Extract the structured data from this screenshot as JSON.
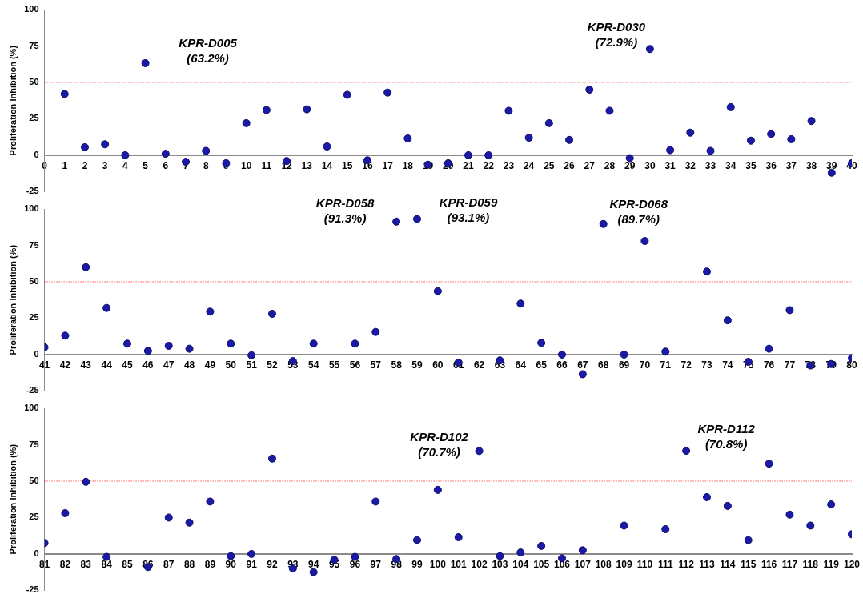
{
  "chart_data": [
    {
      "type": "scatter",
      "ylabel": "Proliferation Inhibition (%)",
      "color": "#1a1aa6",
      "grid": false,
      "x": [
        1,
        2,
        3,
        4,
        5,
        6,
        7,
        8,
        9,
        10,
        11,
        12,
        13,
        14,
        15,
        16,
        17,
        18,
        19,
        20,
        21,
        22,
        23,
        24,
        25,
        26,
        27,
        28,
        29,
        30,
        31,
        32,
        33,
        34,
        35,
        36,
        37,
        38,
        39,
        40
      ],
      "values": [
        42,
        5.5,
        7.5,
        0,
        63.2,
        1,
        -4.5,
        3,
        -5.5,
        22,
        31,
        -4,
        31.5,
        6,
        41.5,
        -3.5,
        43,
        11.5,
        -6.5,
        -5.5,
        0,
        0,
        30.5,
        12,
        22,
        10.5,
        45,
        30.5,
        -2,
        72.9,
        3.5,
        15.5,
        3,
        33,
        10,
        14.5,
        11,
        23.5,
        -12,
        -5.5
      ],
      "xlim": [
        0,
        40
      ],
      "xticks": [
        0,
        1,
        2,
        3,
        4,
        5,
        6,
        7,
        8,
        9,
        10,
        11,
        12,
        13,
        14,
        15,
        16,
        17,
        18,
        19,
        20,
        21,
        22,
        23,
        24,
        25,
        26,
        27,
        28,
        29,
        30,
        31,
        32,
        33,
        34,
        35,
        36,
        37,
        38,
        39,
        40
      ],
      "ylim": [
        -25,
        100
      ],
      "yticks": [
        -25,
        0,
        25,
        50,
        75,
        100
      ],
      "reference_line": {
        "value": 50,
        "color": "#ff0000"
      },
      "annotations": [
        {
          "x": 5,
          "text": [
            "KPR-D005",
            "(63.2%)"
          ]
        },
        {
          "x": 30,
          "text": [
            "KPR-D030",
            "(72.9%)"
          ]
        }
      ]
    },
    {
      "type": "scatter",
      "ylabel": "Proliferation Inhibition (%)",
      "color": "#1a1aa6",
      "grid": false,
      "x": [
        41,
        42,
        43,
        44,
        45,
        46,
        47,
        48,
        49,
        50,
        51,
        52,
        53,
        54,
        55,
        56,
        57,
        58,
        59,
        60,
        61,
        62,
        63,
        64,
        65,
        66,
        67,
        68,
        69,
        70,
        71,
        72,
        73,
        74,
        75,
        76,
        77,
        78,
        79,
        80
      ],
      "values": [
        5,
        13,
        60,
        32,
        7.5,
        2.5,
        6,
        4,
        29.5,
        7.5,
        -0.5,
        28,
        -4.5,
        7.5,
        null,
        7.5,
        15.5,
        91.3,
        93.1,
        43.5,
        -5.5,
        null,
        -4,
        35,
        8,
        0,
        -13.5,
        89.7,
        0,
        78,
        2,
        null,
        57,
        23.5,
        -5,
        4,
        30.5,
        -7.5,
        -6.5,
        -2.5
      ],
      "xlim": [
        41,
        80
      ],
      "xticks": [
        41,
        42,
        43,
        44,
        45,
        46,
        47,
        48,
        49,
        50,
        51,
        52,
        53,
        54,
        55,
        56,
        57,
        58,
        59,
        60,
        61,
        62,
        63,
        64,
        65,
        66,
        67,
        68,
        69,
        70,
        71,
        72,
        73,
        74,
        75,
        76,
        77,
        78,
        79,
        80
      ],
      "ylim": [
        -25,
        100
      ],
      "yticks": [
        -25,
        0,
        25,
        50,
        75,
        100
      ],
      "reference_line": {
        "value": 50,
        "color": "#ff0000"
      },
      "annotations": [
        {
          "x": 58,
          "text": [
            "KPR-D058",
            "(91.3%)"
          ]
        },
        {
          "x": 59,
          "text": [
            "KPR-D059",
            "(93.1%)"
          ]
        },
        {
          "x": 68,
          "text": [
            "KPR-D068",
            "(89.7%)"
          ]
        }
      ]
    },
    {
      "type": "scatter",
      "ylabel": "Proliferation Inhibition (%)",
      "color": "#1a1aa6",
      "grid": false,
      "x": [
        81,
        82,
        83,
        84,
        85,
        86,
        87,
        88,
        89,
        90,
        91,
        92,
        93,
        94,
        95,
        96,
        97,
        98,
        99,
        100,
        101,
        102,
        103,
        104,
        105,
        106,
        107,
        108,
        109,
        110,
        111,
        112,
        113,
        114,
        115,
        116,
        117,
        118,
        119,
        120
      ],
      "values": [
        7.5,
        28,
        49.5,
        -2,
        null,
        -9,
        25,
        21.5,
        36,
        -1.5,
        0,
        65.5,
        -10,
        -12.5,
        -4,
        -2,
        36,
        -3.5,
        9.5,
        44,
        11.5,
        70.7,
        -1.5,
        1,
        5.5,
        -3,
        2.5,
        null,
        19.5,
        null,
        17,
        70.8,
        39,
        33,
        9.5,
        62,
        27,
        19.5,
        34,
        13.5
      ],
      "xlim": [
        81,
        120
      ],
      "xticks": [
        81,
        82,
        83,
        84,
        85,
        86,
        87,
        88,
        89,
        90,
        91,
        92,
        93,
        94,
        95,
        96,
        97,
        98,
        99,
        100,
        101,
        102,
        103,
        104,
        105,
        106,
        107,
        108,
        109,
        110,
        111,
        112,
        113,
        114,
        115,
        116,
        117,
        118,
        119,
        120
      ],
      "ylim": [
        -25,
        100
      ],
      "yticks": [
        -25,
        0,
        25,
        50,
        75,
        100
      ],
      "reference_line": {
        "value": 50,
        "color": "#ff0000"
      },
      "annotations": [
        {
          "x": 102,
          "text": [
            "KPR-D102",
            "(70.7%)"
          ]
        },
        {
          "x": 112,
          "text": [
            "KPR-D112",
            "(70.8%)"
          ]
        }
      ]
    }
  ]
}
